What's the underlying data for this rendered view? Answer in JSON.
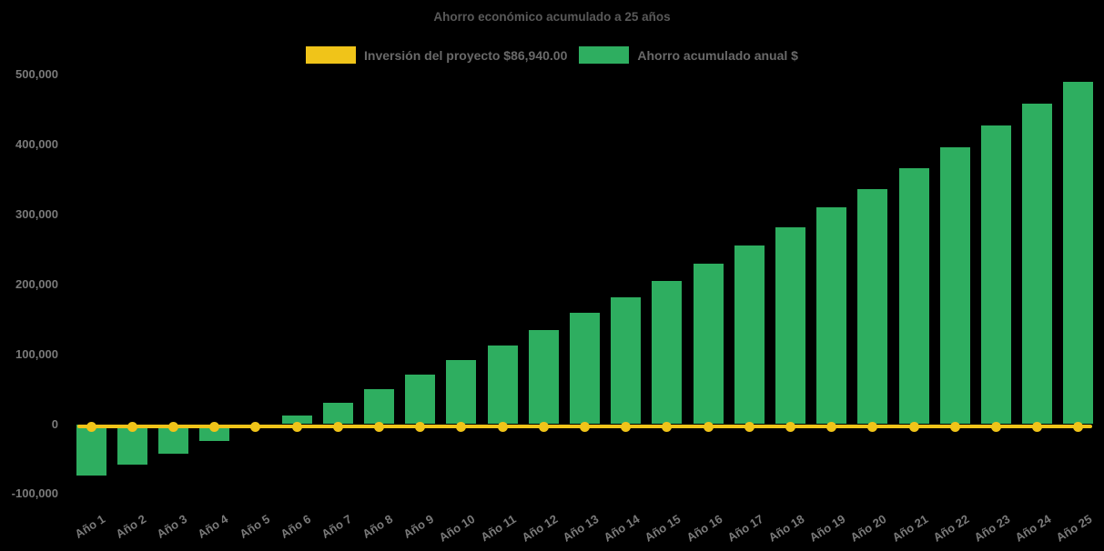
{
  "title": "Ahorro económico acumulado a 25 años",
  "colors": {
    "background": "#000000",
    "bar_green": "#2EAE60",
    "line_yellow": "#F0C419",
    "title_text": "#595959",
    "axis_text": "#7A7A7A",
    "legend_text": "#696969"
  },
  "legend": {
    "items": [
      {
        "label": "Inversión del proyecto $86,940.00",
        "color": "#F0C419"
      },
      {
        "label": "Ahorro acumulado anual $",
        "color": "#2EAE60"
      }
    ]
  },
  "chart_data": {
    "type": "bar",
    "title": "Ahorro económico acumulado a 25 años",
    "categories": [
      "Año 1",
      "Año 2",
      "Año 3",
      "Año 4",
      "Año 5",
      "Año 6",
      "Año 7",
      "Año 8",
      "Año 9",
      "Año 10",
      "Año 11",
      "Año 12",
      "Año 13",
      "Año 14",
      "Año 15",
      "Año 16",
      "Año 17",
      "Año 18",
      "Año 19",
      "Año 20",
      "Año 21",
      "Año 22",
      "Año 23",
      "Año 24",
      "Año 25"
    ],
    "series": [
      {
        "name": "Inversión del proyecto $86,940.00",
        "type": "line",
        "color": "#F0C419",
        "values": [
          0,
          0,
          0,
          0,
          0,
          0,
          0,
          0,
          0,
          0,
          0,
          0,
          0,
          0,
          0,
          0,
          0,
          0,
          0,
          0,
          0,
          0,
          0,
          0,
          0
        ]
      },
      {
        "name": "Ahorro acumulado anual $",
        "type": "bar",
        "color": "#2EAE60",
        "values": [
          -74000,
          -57500,
          -42000,
          -23500,
          -3000,
          13000,
          31000,
          50500,
          71000,
          92000,
          113000,
          135000,
          159000,
          182000,
          205000,
          230000,
          255500,
          281500,
          310000,
          336500,
          366000,
          396500,
          427000,
          458500,
          490000
        ]
      }
    ],
    "ylim": [
      -100000,
      500000
    ],
    "yticks": [
      500000,
      400000,
      300000,
      200000,
      100000,
      0,
      -100000
    ],
    "grid": false,
    "legend_position": "top"
  }
}
